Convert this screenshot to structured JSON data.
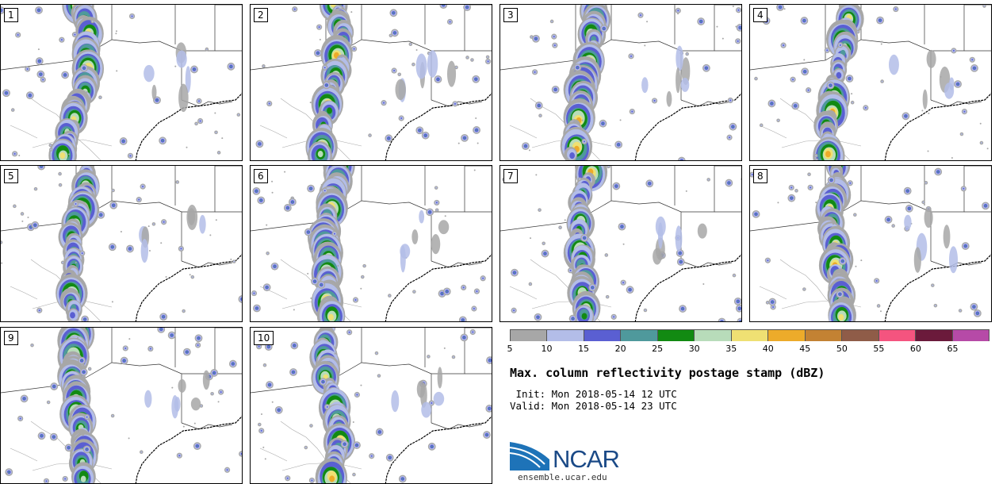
{
  "panels": [
    {
      "label": "1"
    },
    {
      "label": "2"
    },
    {
      "label": "3"
    },
    {
      "label": "4"
    },
    {
      "label": "5"
    },
    {
      "label": "6"
    },
    {
      "label": "7"
    },
    {
      "label": "8"
    },
    {
      "label": "9"
    },
    {
      "label": "10"
    }
  ],
  "colorbar": {
    "colors": [
      "#a7a7a7",
      "#b3bde8",
      "#5a5fd2",
      "#4f999c",
      "#128a12",
      "#b8dcba",
      "#efe073",
      "#edab2a",
      "#c38233",
      "#8f5c48",
      "#f4547f",
      "#6b1a3b",
      "#b64aa7"
    ],
    "ticks": [
      "5",
      "10",
      "15",
      "20",
      "25",
      "30",
      "35",
      "40",
      "45",
      "50",
      "55",
      "60",
      "65"
    ]
  },
  "title": "Max. column reflectivity postage stamp (dBZ)",
  "init": " Init: Mon 2018-05-14 12 UTC",
  "valid": "Valid: Mon 2018-05-14 23 UTC",
  "logo": {
    "text": "NCAR",
    "url": "ensemble.ucar.edu"
  }
}
